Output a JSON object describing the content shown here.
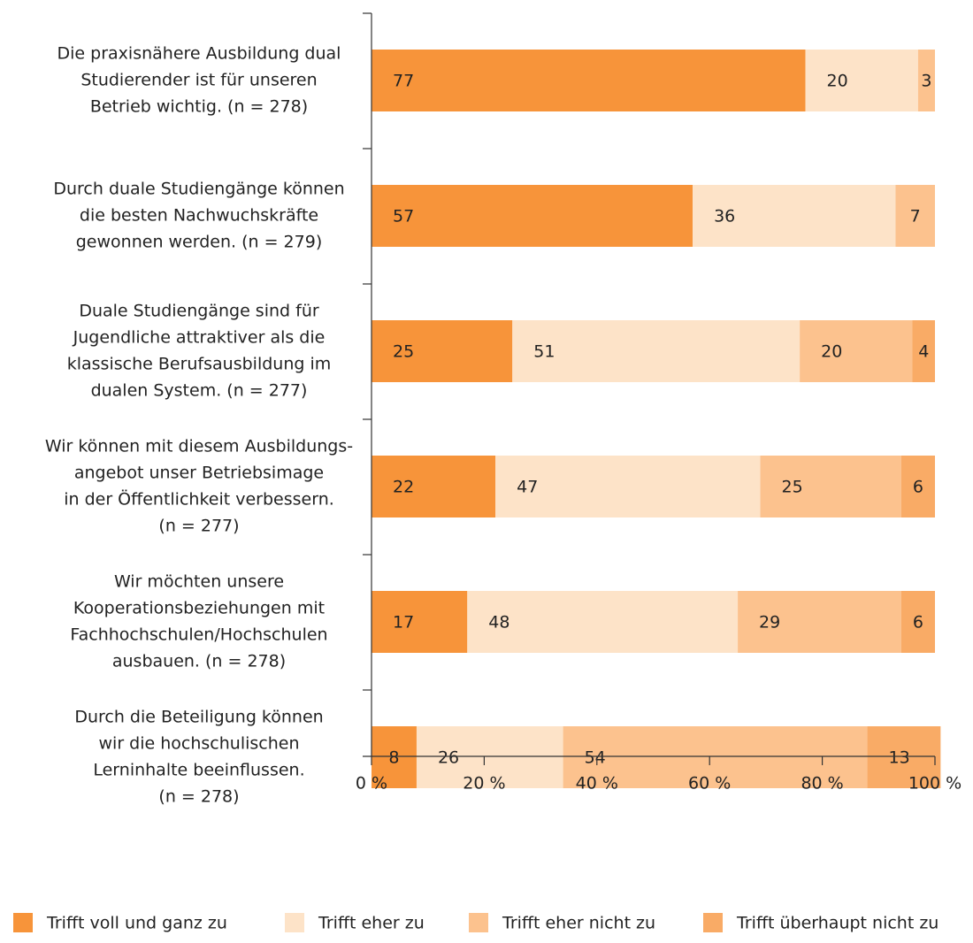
{
  "chart_data": {
    "type": "stacked_barh",
    "categories": [
      [
        "Die praxisnähere Ausbildung dual",
        "Studierender ist für unseren",
        "Betrieb wichtig. (n = 278)"
      ],
      [
        "Durch duale Studiengänge können",
        "die besten Nachwuchskräfte",
        "gewonnen werden. (n = 279)"
      ],
      [
        "Duale Studiengänge sind für",
        "Jugendliche attraktiver als die",
        "klassische Berufsausbildung im",
        "dualen System. (n = 277)"
      ],
      [
        "Wir können mit diesem Ausbildungs-",
        "angebot unser Betriebsimage",
        "in der Öffentlichkeit verbessern.",
        "(n = 277)"
      ],
      [
        "Wir möchten unsere",
        "Kooperationsbeziehungen mit",
        "Fachhochschulen/Hochschulen",
        "ausbauen. (n = 278)"
      ],
      [
        "Durch die Beteiligung können",
        "wir die hochschulischen",
        "Lerninhalte beeinflussen.",
        "(n = 278)"
      ]
    ],
    "series": [
      {
        "name": "Trifft voll und ganz zu",
        "color": "#f7943a",
        "values": [
          77,
          57,
          25,
          22,
          17,
          8
        ]
      },
      {
        "name": "Trifft eher zu",
        "color": "#fde3c8",
        "values": [
          20,
          36,
          51,
          47,
          48,
          26
        ]
      },
      {
        "name": "Trifft eher nicht zu",
        "color": "#fcc28e",
        "values": [
          3,
          7,
          20,
          25,
          29,
          54
        ]
      },
      {
        "name": "Trifft überhaupt nicht zu",
        "color": "#f9ab66",
        "values": [
          null,
          null,
          4,
          6,
          6,
          13
        ]
      }
    ],
    "xlim": [
      0,
      100
    ],
    "xticks": [
      {
        "value": 0,
        "label": "0 %"
      },
      {
        "value": 20,
        "label": "20 %"
      },
      {
        "value": 40,
        "label": "40 %"
      },
      {
        "value": 60,
        "label": "60 %"
      },
      {
        "value": 80,
        "label": "80 %"
      },
      {
        "value": 100,
        "label": "100 %"
      }
    ]
  }
}
